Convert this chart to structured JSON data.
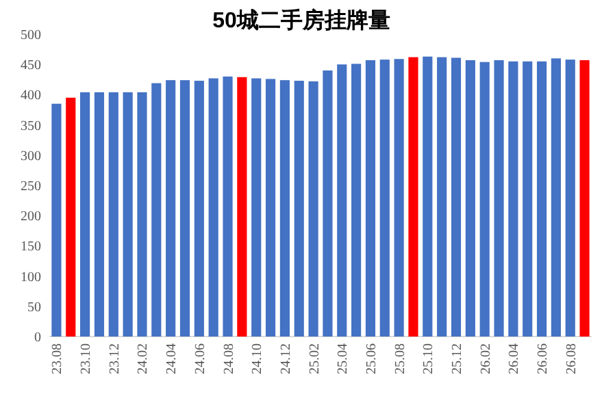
{
  "chart_data": {
    "type": "bar",
    "title": "50城二手房挂牌量",
    "categories": [
      "23.08",
      null,
      "23.10",
      null,
      "23.12",
      null,
      "24.02",
      null,
      "24.04",
      null,
      "24.06",
      null,
      "24.08",
      null,
      "24.10",
      null,
      "24.12",
      null,
      "25.02",
      null,
      "25.04",
      null,
      "25.06",
      null,
      "25.08",
      null,
      "25.10",
      null,
      "25.12",
      null,
      "26.02",
      null,
      "26.04",
      null,
      "26.06",
      null,
      "26.08",
      null
    ],
    "values": [
      385,
      395,
      404,
      404,
      404,
      404,
      404,
      419,
      424,
      424,
      423,
      427,
      430,
      429,
      427,
      426,
      424,
      423,
      422,
      440,
      450,
      451,
      457,
      458,
      459,
      462,
      463,
      462,
      461,
      457,
      454,
      457,
      455,
      455,
      455,
      460,
      458,
      457
    ],
    "colors": [
      "#4472c4",
      "#ff0000",
      "#4472c4",
      "#4472c4",
      "#4472c4",
      "#4472c4",
      "#4472c4",
      "#4472c4",
      "#4472c4",
      "#4472c4",
      "#4472c4",
      "#4472c4",
      "#4472c4",
      "#ff0000",
      "#4472c4",
      "#4472c4",
      "#4472c4",
      "#4472c4",
      "#4472c4",
      "#4472c4",
      "#4472c4",
      "#4472c4",
      "#4472c4",
      "#4472c4",
      "#4472c4",
      "#ff0000",
      "#4472c4",
      "#4472c4",
      "#4472c4",
      "#4472c4",
      "#4472c4",
      "#4472c4",
      "#4472c4",
      "#4472c4",
      "#4472c4",
      "#4472c4",
      "#4472c4",
      "#ff0000"
    ],
    "ylim": [
      0,
      500
    ],
    "yticks": [
      0,
      50,
      100,
      150,
      200,
      250,
      300,
      350,
      400,
      450,
      500
    ],
    "grid": false
  }
}
